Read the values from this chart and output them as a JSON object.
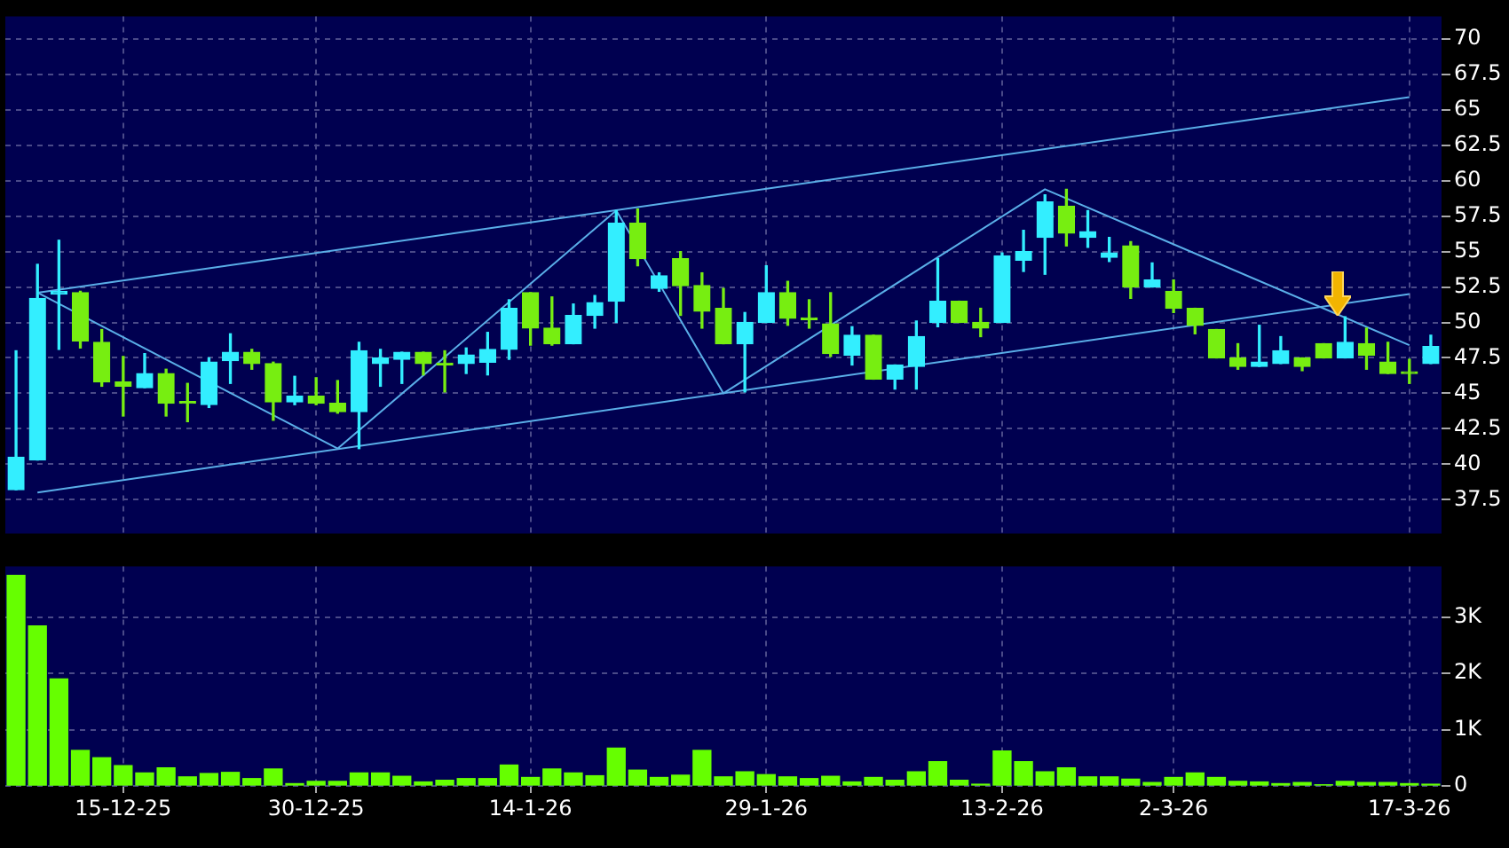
{
  "chart_data": [
    {
      "type": "candlestick",
      "categories": [
        null,
        null,
        null,
        null,
        null,
        null,
        null,
        null,
        null,
        null,
        null,
        null,
        null,
        null,
        null,
        null,
        null,
        null,
        null,
        null,
        null,
        null,
        null,
        null,
        null,
        null,
        null,
        null,
        null,
        null,
        null,
        null,
        null,
        null,
        null,
        null,
        null,
        null,
        null,
        null,
        null,
        null,
        null,
        null,
        null,
        null,
        null,
        null,
        null,
        null,
        null,
        null,
        null,
        null,
        null,
        null,
        null,
        null,
        null,
        null,
        null,
        null,
        null,
        null,
        null,
        null,
        null
      ],
      "ohlc": [
        [
          38.2,
          48.0,
          38.2,
          40.5
        ],
        [
          40.3,
          54.1,
          40.3,
          51.7
        ],
        [
          52.0,
          55.8,
          48.1,
          52.2
        ],
        [
          52.1,
          52.2,
          48.2,
          48.7
        ],
        [
          48.6,
          49.5,
          45.5,
          45.8
        ],
        [
          45.8,
          47.6,
          43.4,
          45.5
        ],
        [
          45.4,
          47.8,
          45.4,
          46.4
        ],
        [
          46.4,
          46.7,
          43.4,
          44.3
        ],
        [
          44.4,
          45.7,
          43.0,
          44.3
        ],
        [
          44.2,
          47.5,
          44.0,
          47.2
        ],
        [
          47.3,
          49.2,
          45.7,
          47.9
        ],
        [
          47.9,
          48.1,
          46.7,
          47.1
        ],
        [
          47.1,
          47.2,
          43.1,
          44.4
        ],
        [
          44.4,
          46.2,
          44.2,
          44.8
        ],
        [
          44.8,
          46.1,
          44.2,
          44.3
        ],
        [
          44.3,
          45.9,
          43.6,
          43.7
        ],
        [
          43.7,
          48.6,
          41.1,
          48.0
        ],
        [
          47.1,
          48.1,
          45.5,
          47.5
        ],
        [
          47.4,
          47.9,
          45.7,
          47.9
        ],
        [
          47.9,
          47.9,
          46.3,
          47.1
        ],
        [
          47.1,
          48.0,
          45.1,
          47.0
        ],
        [
          47.1,
          48.2,
          46.4,
          47.7
        ],
        [
          47.2,
          49.3,
          46.3,
          48.1
        ],
        [
          48.1,
          51.6,
          47.4,
          51.0
        ],
        [
          52.1,
          52.1,
          48.4,
          49.6
        ],
        [
          49.6,
          51.8,
          48.4,
          48.5
        ],
        [
          48.5,
          51.3,
          48.5,
          50.5
        ],
        [
          50.5,
          51.9,
          49.6,
          51.4
        ],
        [
          51.5,
          57.9,
          50.0,
          57.0
        ],
        [
          57.0,
          58.0,
          54.0,
          54.5
        ],
        [
          52.4,
          53.5,
          52.2,
          53.3
        ],
        [
          54.5,
          55.0,
          50.5,
          52.6
        ],
        [
          52.6,
          53.5,
          49.6,
          50.8
        ],
        [
          51.0,
          52.4,
          48.5,
          48.5
        ],
        [
          48.5,
          50.7,
          45.1,
          50.0
        ],
        [
          50.0,
          54.0,
          50.0,
          52.1
        ],
        [
          52.1,
          52.9,
          49.8,
          50.3
        ],
        [
          50.3,
          51.6,
          49.6,
          50.2
        ],
        [
          49.9,
          52.1,
          47.6,
          47.8
        ],
        [
          47.7,
          49.7,
          47.0,
          49.1
        ],
        [
          49.1,
          49.1,
          46.0,
          46.0
        ],
        [
          46.0,
          47.0,
          45.3,
          47.0
        ],
        [
          46.9,
          50.1,
          45.3,
          49.0
        ],
        [
          50.0,
          54.5,
          49.7,
          51.5
        ],
        [
          51.5,
          51.5,
          50.0,
          50.0
        ],
        [
          50.0,
          51.0,
          49.0,
          49.6
        ],
        [
          50.0,
          54.9,
          50.0,
          54.7
        ],
        [
          54.4,
          56.5,
          53.6,
          55.0
        ],
        [
          56.0,
          59.0,
          53.4,
          58.5
        ],
        [
          58.2,
          59.4,
          55.4,
          56.3
        ],
        [
          56.0,
          57.9,
          55.3,
          56.4
        ],
        [
          54.6,
          56.0,
          54.3,
          54.9
        ],
        [
          55.4,
          55.7,
          51.7,
          52.5
        ],
        [
          52.5,
          54.2,
          52.5,
          53.0
        ],
        [
          52.2,
          53.0,
          50.7,
          51.0
        ],
        [
          51.0,
          51.0,
          49.2,
          49.8
        ],
        [
          49.5,
          49.5,
          47.5,
          47.5
        ],
        [
          47.5,
          48.5,
          46.7,
          46.9
        ],
        [
          46.9,
          49.8,
          46.9,
          47.2
        ],
        [
          47.1,
          49.0,
          47.1,
          48.0
        ],
        [
          47.5,
          47.5,
          46.6,
          46.9
        ],
        [
          48.5,
          48.5,
          47.5,
          47.5
        ],
        [
          47.5,
          50.4,
          47.5,
          48.6
        ],
        [
          48.5,
          49.6,
          46.7,
          47.7
        ],
        [
          47.2,
          48.6,
          46.4,
          46.4
        ],
        [
          46.5,
          47.4,
          45.7,
          46.4
        ],
        [
          47.1,
          49.1,
          47.1,
          48.3
        ]
      ],
      "colors": [
        "#33eeff",
        "#33eeff",
        "#33eeff",
        "#77ee11",
        "#77ee11",
        "#77ee11",
        "#33eeff",
        "#77ee11",
        "#77ee11",
        "#33eeff",
        "#33eeff",
        "#77ee11",
        "#77ee11",
        "#33eeff",
        "#77ee11",
        "#77ee11",
        "#33eeff",
        "#33eeff",
        "#33eeff",
        "#77ee11",
        "#77ee11",
        "#33eeff",
        "#33eeff",
        "#33eeff",
        "#77ee11",
        "#77ee11",
        "#33eeff",
        "#33eeff",
        "#33eeff",
        "#77ee11",
        "#33eeff",
        "#77ee11",
        "#77ee11",
        "#77ee11",
        "#33eeff",
        "#33eeff",
        "#77ee11",
        "#77ee11",
        "#77ee11",
        "#33eeff",
        "#77ee11",
        "#33eeff",
        "#33eeff",
        "#33eeff",
        "#77ee11",
        "#77ee11",
        "#33eeff",
        "#33eeff",
        "#33eeff",
        "#77ee11",
        "#33eeff",
        "#33eeff",
        "#77ee11",
        "#33eeff",
        "#77ee11",
        "#77ee11",
        "#77ee11",
        "#77ee11",
        "#33eeff",
        "#33eeff",
        "#77ee11",
        "#77ee11",
        "#33eeff",
        "#77ee11",
        "#77ee11",
        "#77ee11",
        "#33eeff"
      ],
      "series": [
        {
          "type": "line",
          "color": "#5aaee8",
          "values": [
            null,
            52.1,
            null,
            null,
            null,
            null,
            null,
            null,
            null,
            null,
            null,
            null,
            null,
            null,
            null,
            null,
            null,
            null,
            null,
            null,
            null,
            null,
            null,
            null,
            null,
            null,
            null,
            null,
            null,
            null,
            null,
            null,
            null,
            null,
            null,
            null,
            null,
            null,
            null,
            null,
            null,
            null,
            null,
            null,
            null,
            null,
            null,
            null,
            null,
            null,
            null,
            null,
            null,
            null,
            null,
            null,
            null,
            null,
            null,
            null,
            null,
            null,
            null,
            null,
            null,
            65.9,
            null
          ]
        },
        {
          "type": "line",
          "color": "#5aaee8",
          "values": [
            null,
            38.0,
            null,
            null,
            null,
            null,
            null,
            null,
            null,
            null,
            null,
            null,
            null,
            null,
            null,
            null,
            null,
            null,
            null,
            null,
            null,
            null,
            null,
            null,
            null,
            null,
            null,
            null,
            null,
            null,
            null,
            null,
            null,
            null,
            null,
            null,
            null,
            null,
            null,
            null,
            null,
            null,
            null,
            null,
            null,
            null,
            null,
            null,
            null,
            null,
            null,
            null,
            null,
            null,
            null,
            null,
            null,
            null,
            null,
            null,
            null,
            null,
            null,
            null,
            null,
            52.0,
            null
          ]
        },
        {
          "type": "line",
          "color": "#5aaee8",
          "values": [
            null,
            52.1,
            null,
            null,
            null,
            null,
            null,
            null,
            null,
            null,
            null,
            null,
            null,
            null,
            null,
            41.1,
            null,
            null,
            null,
            null,
            null,
            null,
            null,
            null,
            null,
            null,
            null,
            null,
            57.9,
            null,
            null,
            null,
            null,
            45.0,
            null,
            null,
            null,
            null,
            null,
            null,
            null,
            null,
            null,
            null,
            null,
            null,
            null,
            null,
            59.4,
            null,
            null,
            null,
            null,
            null,
            null,
            null,
            null,
            null,
            null,
            null,
            null,
            null,
            null,
            null,
            null,
            48.4,
            null
          ]
        }
      ],
      "ylim": [
        35.1,
        71.6
      ],
      "yticks": [
        37.5,
        40,
        42.5,
        45,
        47.5,
        50,
        52.5,
        55,
        57.5,
        60,
        62.5,
        65,
        67.5,
        70
      ],
      "grid": true,
      "tick_labels": "y"
    },
    {
      "type": "bar",
      "categories": [
        null,
        null,
        null,
        null,
        null,
        "15-12-25",
        null,
        null,
        null,
        null,
        null,
        null,
        null,
        null,
        "30-12-25",
        null,
        null,
        null,
        null,
        null,
        null,
        null,
        null,
        null,
        "14-1-26",
        null,
        null,
        null,
        null,
        null,
        null,
        null,
        null,
        null,
        null,
        "29-1-26",
        null,
        null,
        null,
        null,
        null,
        null,
        null,
        null,
        null,
        null,
        "13-2-26",
        null,
        null,
        null,
        null,
        null,
        null,
        null,
        "2-3-26",
        null,
        null,
        null,
        null,
        null,
        null,
        null,
        null,
        null,
        null,
        "17-3-26",
        null
      ],
      "values": [
        3740,
        2840,
        1900,
        630,
        500,
        360,
        230,
        320,
        160,
        220,
        240,
        130,
        300,
        40,
        80,
        80,
        230,
        230,
        170,
        70,
        100,
        130,
        130,
        370,
        150,
        300,
        230,
        180,
        670,
        280,
        150,
        190,
        630,
        160,
        250,
        200,
        160,
        130,
        170,
        70,
        150,
        100,
        250,
        430,
        100,
        30,
        620,
        430,
        250,
        320,
        160,
        160,
        120,
        60,
        150,
        230,
        150,
        80,
        70,
        40,
        60,
        20,
        80,
        60,
        60,
        40,
        30
      ],
      "color": "#66ff00",
      "ylim": [
        0,
        3900
      ],
      "yticks": [
        0,
        {
          "value": 1000,
          "label": "1K"
        },
        {
          "value": 2000,
          "label": "2K"
        },
        {
          "value": 3000,
          "label": "3K"
        }
      ],
      "grid": true
    }
  ]
}
